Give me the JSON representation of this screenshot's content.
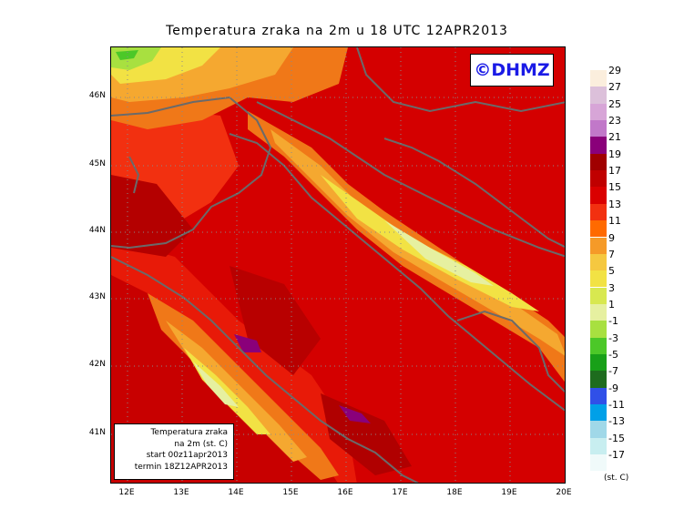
{
  "title": "Temperatura zraka na 2m u 18 UTC 12APR2013",
  "logo": "©DHMZ",
  "info_box": {
    "line1": "Temperatura zraka",
    "line2": "na 2m (st. C)",
    "line3": "start 00z11apr2013",
    "line4": "termin 18Z12APR2013"
  },
  "lat_labels": [
    "46N",
    "45N",
    "44N",
    "43N",
    "42N",
    "41N"
  ],
  "lon_labels": [
    "12E",
    "13E",
    "14E",
    "15E",
    "16E",
    "17E",
    "18E",
    "19E",
    "20E"
  ],
  "legend": {
    "unit": "(st. C)",
    "labels": [
      "29",
      "27",
      "25",
      "23",
      "21",
      "19",
      "17",
      "15",
      "13",
      "11",
      "9",
      "7",
      "5",
      "3",
      "1",
      "-1",
      "-3",
      "-5",
      "-7",
      "-9",
      "-11",
      "-13",
      "-15",
      "-17"
    ],
    "colors": [
      "#fbeedd",
      "#dcc0da",
      "#d7a5d7",
      "#c178c9",
      "#8a007a",
      "#a00000",
      "#c00000",
      "#da0000",
      "#f23010",
      "#ff6a00",
      "#f59a28",
      "#f5c840",
      "#f2e244",
      "#d8e850",
      "#e6f0a0",
      "#a8e040",
      "#4cc828",
      "#18a018",
      "#1e6c1e",
      "#3050e8",
      "#00a0e8",
      "#a0d8e8",
      "#c8eef0",
      "#f0fafa"
    ]
  }
}
